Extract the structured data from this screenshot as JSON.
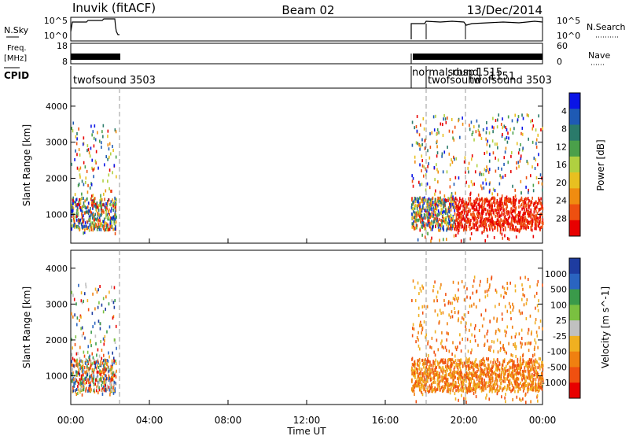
{
  "header": {
    "station": "Inuvik (fitACF)",
    "beam": "Beam 02",
    "date": "13/Dec/2014"
  },
  "panels": {
    "nsky": {
      "left_label": "N.Sky",
      "right_label": "N.Search",
      "left_ticks": [
        "10^5",
        "10^0"
      ],
      "right_ticks": [
        "10^5",
        "10^0"
      ]
    },
    "freq": {
      "left_label_line1": "Freq.",
      "left_label_line2": "[MHz]",
      "right_label": "Nave",
      "left_ticks": [
        "18",
        "8"
      ],
      "right_ticks": [
        "60",
        "0"
      ]
    },
    "cpid": {
      "label": "CPID",
      "annotations": [
        "twofsound 3503",
        "normalsound",
        "twofsound",
        "rbsp",
        "1515",
        "1151",
        "twofsound 3503"
      ]
    }
  },
  "chart_data": [
    {
      "type": "heatmap",
      "title": "",
      "ylabel": "Slant Range [km]",
      "yticks": [
        "1000",
        "2000",
        "3000",
        "4000"
      ],
      "ylim": [
        200,
        4500
      ],
      "colorbar_label": "Power [dB]",
      "colorbar_ticks": [
        "4",
        "8",
        "12",
        "16",
        "20",
        "24",
        "28"
      ],
      "colorscale": [
        "#0a14e6",
        "#1e5ab4",
        "#2a7a6a",
        "#4aa04a",
        "#b0d040",
        "#e8c020",
        "#f08c10",
        "#ee5010",
        "#e80000"
      ],
      "data_regions": [
        {
          "x_start_hours": 0.0,
          "x_end_hours": 2.3,
          "y_range_km": [
            500,
            3600
          ],
          "level": "mixed low-mid"
        },
        {
          "x_start_hours": 17.3,
          "x_end_hours": 24.0,
          "y_range_km": [
            300,
            3800
          ],
          "level": "mixed high"
        }
      ]
    },
    {
      "type": "heatmap",
      "title": "",
      "ylabel": "Slant Range [km]",
      "yticks": [
        "1000",
        "2000",
        "3000",
        "4000"
      ],
      "ylim": [
        200,
        4500
      ],
      "colorbar_label": "Velocity [m s^-1]",
      "colorbar_ticks": [
        "1000",
        "500",
        "100",
        "25",
        "-25",
        "-100",
        "-500",
        "-1000"
      ],
      "colorscale": [
        "#1e3ca0",
        "#2a64c0",
        "#3a9a4a",
        "#7ac040",
        "#c0c0c0",
        "#f0b020",
        "#f08010",
        "#f05010",
        "#e80000"
      ],
      "data_regions": [
        {
          "x_start_hours": 0.0,
          "x_end_hours": 2.3,
          "y_range_km": [
            500,
            3600
          ],
          "level": "mixed"
        },
        {
          "x_start_hours": 17.3,
          "x_end_hours": 24.0,
          "y_range_km": [
            300,
            3800
          ],
          "level": "mostly negative"
        }
      ]
    }
  ],
  "xaxis": {
    "label": "Time UT",
    "ticks": [
      "00:00",
      "04:00",
      "08:00",
      "12:00",
      "16:00",
      "20:00",
      "00:00"
    ]
  }
}
